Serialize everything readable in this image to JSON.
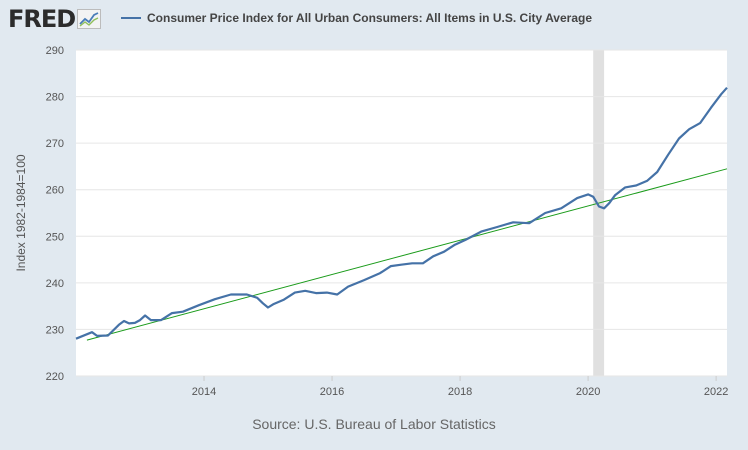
{
  "header": {
    "logo_text": "FRED",
    "legend_label": "Consumer Price Index for All Urban Consumers: All Items in U.S. City Average"
  },
  "footer": {
    "source": "Source: U.S. Bureau of Labor Statistics"
  },
  "colors": {
    "series": "#4572a7",
    "trend": "#1a9b1a",
    "recession": "#e0e0e0",
    "background": "#e1e9f0"
  },
  "chart_data": {
    "type": "line",
    "title": "",
    "xlabel": "",
    "ylabel": "Index 1982-1984=100",
    "ylim": [
      220,
      290
    ],
    "xlim": [
      2012.0,
      2022.17
    ],
    "yticks": [
      220,
      230,
      240,
      250,
      260,
      270,
      280,
      290
    ],
    "xticks": [
      2014,
      2016,
      2018,
      2020,
      2022
    ],
    "grid": true,
    "legend": "top",
    "recession": [
      2020.08,
      2020.25
    ],
    "series": [
      {
        "name": "Consumer Price Index for All Urban Consumers: All Items in U.S. City Average",
        "x": [
          2012.0,
          2012.25,
          2012.33,
          2012.5,
          2012.67,
          2012.75,
          2012.83,
          2012.92,
          2013.0,
          2013.08,
          2013.17,
          2013.33,
          2013.5,
          2013.67,
          2013.92,
          2014.17,
          2014.42,
          2014.67,
          2014.83,
          2014.92,
          2015.0,
          2015.08,
          2015.25,
          2015.42,
          2015.58,
          2015.75,
          2015.92,
          2016.08,
          2016.25,
          2016.5,
          2016.75,
          2016.92,
          2017.08,
          2017.25,
          2017.42,
          2017.58,
          2017.75,
          2017.92,
          2018.08,
          2018.33,
          2018.58,
          2018.83,
          2019.08,
          2019.33,
          2019.58,
          2019.83,
          2020.0,
          2020.08,
          2020.17,
          2020.25,
          2020.33,
          2020.42,
          2020.58,
          2020.75,
          2020.92,
          2021.08,
          2021.25,
          2021.42,
          2021.58,
          2021.75,
          2021.92,
          2022.08,
          2022.17
        ],
        "y": [
          228.0,
          229.4,
          228.6,
          228.7,
          231.0,
          231.8,
          231.3,
          231.4,
          232.0,
          233.0,
          232.0,
          232.0,
          233.5,
          233.8,
          235.2,
          236.5,
          237.5,
          237.5,
          236.8,
          235.6,
          234.7,
          235.4,
          236.4,
          237.9,
          238.3,
          237.8,
          237.9,
          237.5,
          239.2,
          240.6,
          242.1,
          243.6,
          243.9,
          244.2,
          244.2,
          245.7,
          246.7,
          248.2,
          249.2,
          251.0,
          252.0,
          253.0,
          252.8,
          255.0,
          256.0,
          258.2,
          259.0,
          258.5,
          256.4,
          256.0,
          257.1,
          258.8,
          260.5,
          260.9,
          261.9,
          263.8,
          267.5,
          271.0,
          273.0,
          274.3,
          277.6,
          280.5,
          281.9
        ]
      },
      {
        "name": "",
        "x": [
          2012.17,
          2022.17
        ],
        "y": [
          227.7,
          264.5
        ]
      }
    ]
  }
}
